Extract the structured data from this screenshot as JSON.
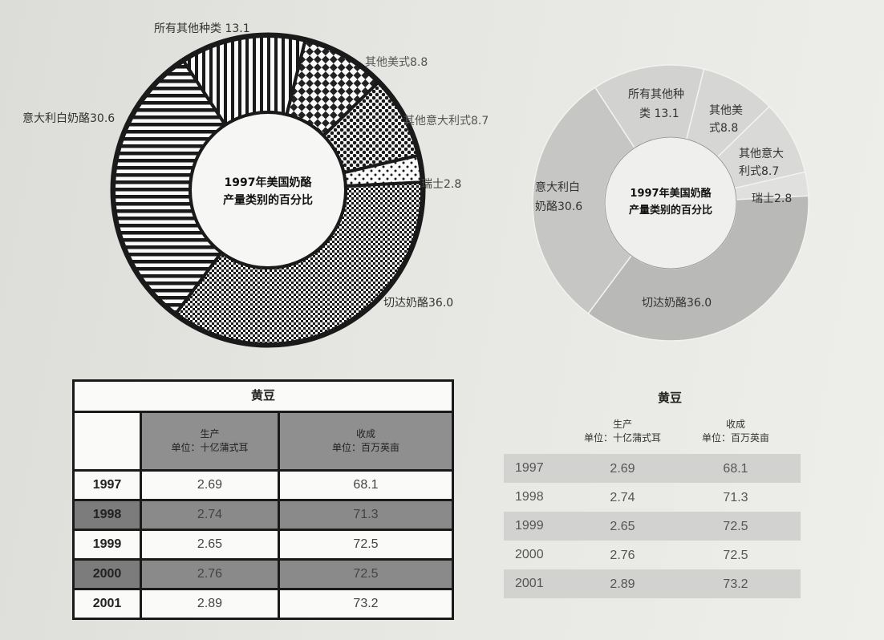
{
  "chart_data": [
    {
      "type": "pie",
      "style": "donut-patterned",
      "title": "1997年美国奶酪产量类别的百分比",
      "title_lines": [
        "1997年美国奶酪",
        "产量类别的百分比"
      ],
      "slices": [
        {
          "label": "切达奶酪36.0",
          "value": 36.0,
          "pattern": "fine-checker"
        },
        {
          "label": "意大利白奶酪30.6",
          "value": 30.6,
          "pattern": "horizontal-stripes"
        },
        {
          "label": "所有其他种类 13.1",
          "value": 13.1,
          "pattern": "vertical-stripes"
        },
        {
          "label": "其他美式8.8",
          "value": 8.8,
          "pattern": "checker"
        },
        {
          "label": "其他意大利式8.7",
          "value": 8.7,
          "pattern": "dots"
        },
        {
          "label": "瑞士2.8",
          "value": 2.8,
          "pattern": "sparse-dots"
        }
      ]
    },
    {
      "type": "pie",
      "style": "donut-gray",
      "title": "1997年美国奶酪产量类别的百分比",
      "title_lines": [
        "1997年美国奶酪",
        "产量类别的百分比"
      ],
      "slices": [
        {
          "label_lines": [
            "切达奶酪36.0"
          ],
          "value": 36.0,
          "color": "#b9b9b7"
        },
        {
          "label_lines": [
            "意大利白",
            "奶酪30.6"
          ],
          "value": 30.6,
          "color": "#c6c6c4"
        },
        {
          "label_lines": [
            "所有其他种",
            "类 13.1"
          ],
          "value": 13.1,
          "color": "#d2d2d0"
        },
        {
          "label_lines": [
            "其他美",
            "式8.8"
          ],
          "value": 8.8,
          "color": "#d6d6d4"
        },
        {
          "label_lines": [
            "其他意大",
            "利式8.7"
          ],
          "value": 8.7,
          "color": "#d9d9d7"
        },
        {
          "label_lines": [
            "瑞士2.8"
          ],
          "value": 2.8,
          "color": "#e0e0de"
        }
      ]
    },
    {
      "type": "table",
      "title": "黄豆",
      "columns": [
        {
          "name": "生产",
          "unit": "单位：十亿蒲式耳"
        },
        {
          "name": "收成",
          "unit": "单位：百万英亩"
        }
      ],
      "rows": [
        {
          "year": "1997",
          "production": "2.69",
          "harvest": "68.1"
        },
        {
          "year": "1998",
          "production": "2.74",
          "harvest": "71.3"
        },
        {
          "year": "1999",
          "production": "2.65",
          "harvest": "72.5"
        },
        {
          "year": "2000",
          "production": "2.76",
          "harvest": "72.5"
        },
        {
          "year": "2001",
          "production": "2.89",
          "harvest": "73.2"
        }
      ]
    }
  ]
}
